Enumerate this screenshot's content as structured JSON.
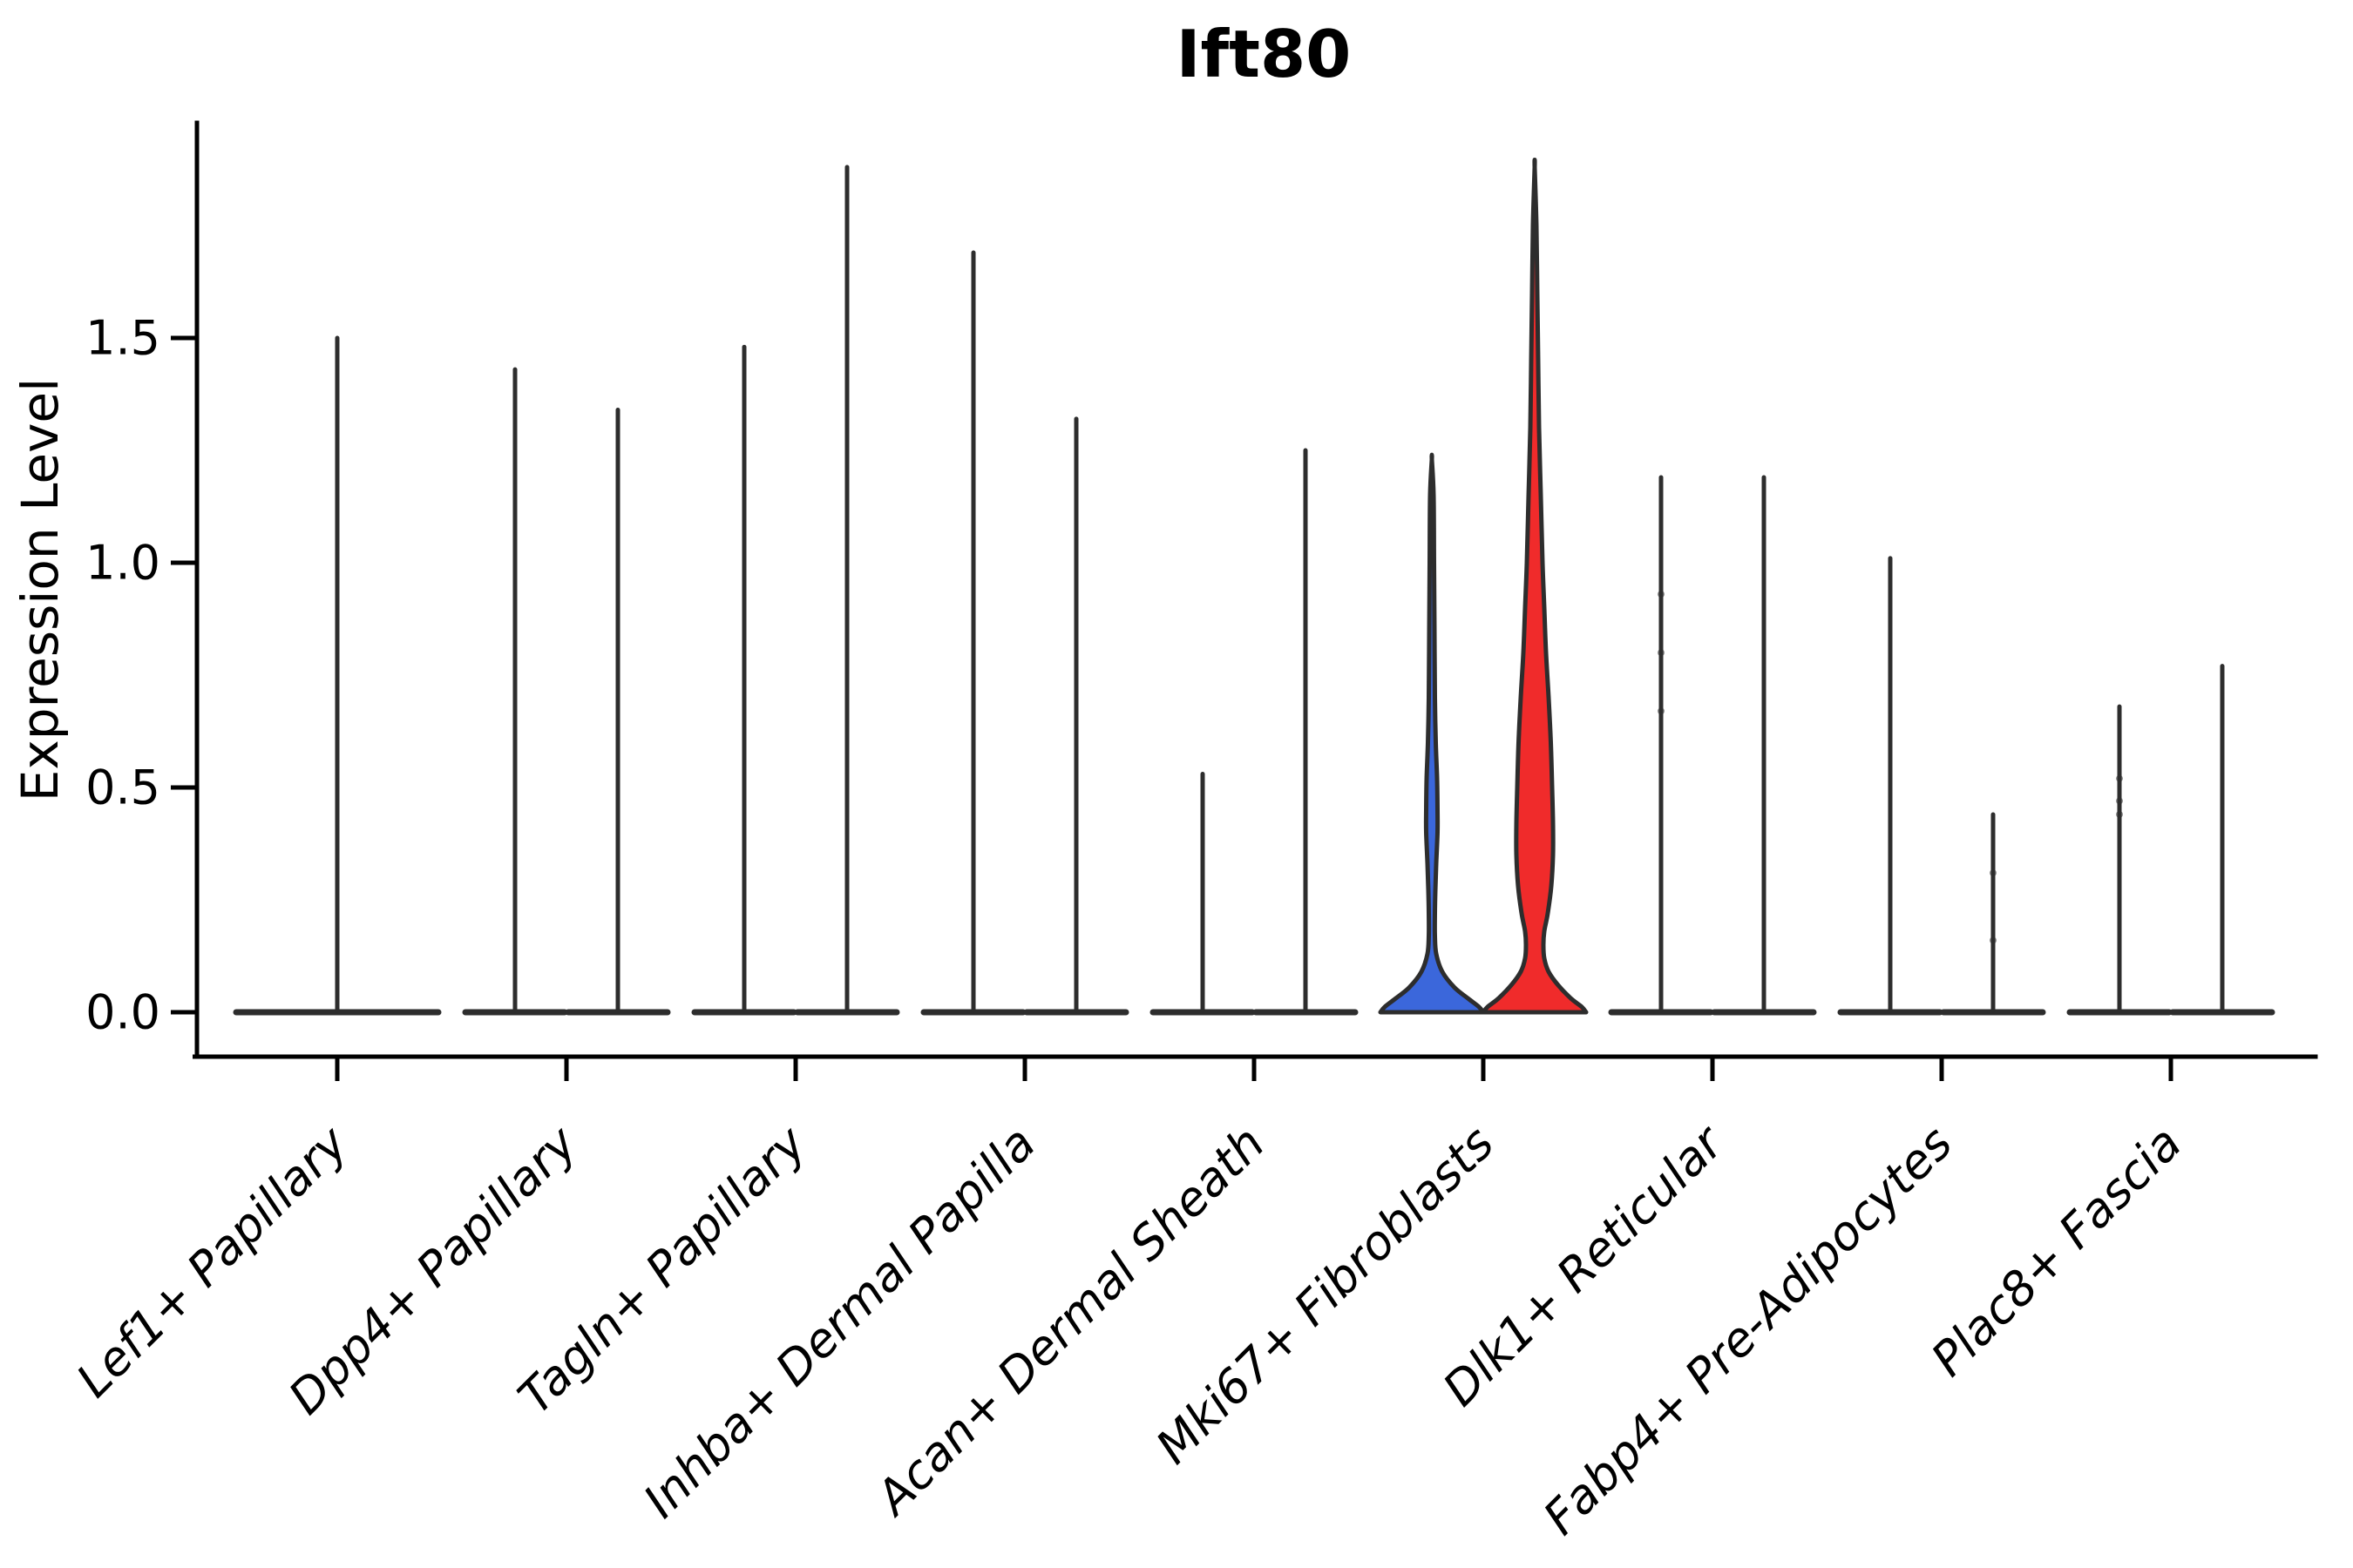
{
  "title": "Ift80",
  "y_axis": {
    "label": "Expression Level",
    "tick_labels": [
      "0.0",
      "0.5",
      "1.0",
      "1.5"
    ]
  },
  "colors": {
    "group_blue": "#3B67DB",
    "group_red": "#F02B2B",
    "outline": "#2D2D2D",
    "axis": "#000000",
    "background": "#FFFFFF"
  },
  "chart_data": {
    "type": "violin",
    "title": "Ift80",
    "xlabel": "",
    "ylabel": "Expression Level",
    "ylim": [
      -0.1,
      1.98
    ],
    "ytick_values": [
      0.0,
      0.5,
      1.0,
      1.5
    ],
    "ytick_labels": [
      "0.0",
      "0.5",
      "1.0",
      "1.5"
    ],
    "grid": false,
    "legend": "none",
    "categories": [
      "Lef1+ Papillary",
      "Dpp4+ Papillary",
      "Tagln+ Papillary",
      "Inhba+ Dermal Papilla",
      "Acan+ Dermal Sheath",
      "Mki67+ Fibroblasts",
      "Dlk1+ Reticular",
      "Fabp4+ Pre-Adipocytes",
      "Plac8+ Fascia"
    ],
    "violins": [
      {
        "category": 0,
        "position": "center",
        "span": "full",
        "style": "spike",
        "max": 1.5
      },
      {
        "category": 1,
        "position": "left",
        "style": "spike",
        "max": 1.43
      },
      {
        "category": 1,
        "position": "right",
        "style": "spike",
        "max": 1.34
      },
      {
        "category": 2,
        "position": "left",
        "style": "spike",
        "max": 1.48
      },
      {
        "category": 2,
        "position": "right",
        "style": "spike",
        "max": 1.88
      },
      {
        "category": 3,
        "position": "left",
        "style": "spike",
        "max": 1.69
      },
      {
        "category": 3,
        "position": "right",
        "style": "spike",
        "max": 1.32
      },
      {
        "category": 4,
        "position": "left",
        "style": "spike",
        "max": 0.53
      },
      {
        "category": 4,
        "position": "right",
        "style": "spike",
        "max": 1.25
      },
      {
        "category": 5,
        "position": "left",
        "style": "violin",
        "fill": "#3B67DB",
        "max": 1.23,
        "profile": [
          [
            1.23,
            0
          ],
          [
            1.15,
            2
          ],
          [
            1.0,
            2.5
          ],
          [
            0.85,
            3
          ],
          [
            0.7,
            3.5
          ],
          [
            0.6,
            4.5
          ],
          [
            0.52,
            6
          ],
          [
            0.45,
            6.5
          ],
          [
            0.4,
            6.5
          ],
          [
            0.33,
            5
          ],
          [
            0.27,
            4
          ],
          [
            0.22,
            3.5
          ],
          [
            0.17,
            3.5
          ],
          [
            0.13,
            5
          ],
          [
            0.09,
            12
          ],
          [
            0.055,
            26
          ],
          [
            0.03,
            42
          ],
          [
            0.012,
            54
          ],
          [
            0,
            59
          ]
        ]
      },
      {
        "category": 5,
        "position": "right",
        "style": "violin",
        "fill": "#F02B2B",
        "max": 1.88,
        "profile": [
          [
            1.88,
            0
          ],
          [
            1.75,
            2
          ],
          [
            1.6,
            3
          ],
          [
            1.45,
            4
          ],
          [
            1.3,
            5
          ],
          [
            1.15,
            7
          ],
          [
            1.0,
            9
          ],
          [
            0.9,
            11
          ],
          [
            0.8,
            13
          ],
          [
            0.7,
            16
          ],
          [
            0.6,
            18.5
          ],
          [
            0.5,
            20
          ],
          [
            0.42,
            21
          ],
          [
            0.35,
            21
          ],
          [
            0.28,
            19
          ],
          [
            0.22,
            15
          ],
          [
            0.18,
            11
          ],
          [
            0.15,
            10
          ],
          [
            0.12,
            11
          ],
          [
            0.09,
            16
          ],
          [
            0.06,
            27
          ],
          [
            0.03,
            42
          ],
          [
            0.012,
            54
          ],
          [
            0,
            59
          ]
        ]
      },
      {
        "category": 6,
        "position": "left",
        "style": "spike",
        "max": 1.19,
        "dots": [
          0.67,
          0.8,
          0.93
        ]
      },
      {
        "category": 6,
        "position": "right",
        "style": "spike",
        "max": 1.19
      },
      {
        "category": 7,
        "position": "left",
        "style": "spike",
        "max": 1.01
      },
      {
        "category": 7,
        "position": "right",
        "style": "spike",
        "max": 0.44,
        "dots": [
          0.16,
          0.31
        ]
      },
      {
        "category": 8,
        "position": "left",
        "style": "spike",
        "max": 0.68,
        "dots": [
          0.44,
          0.47,
          0.52
        ]
      },
      {
        "category": 8,
        "position": "right",
        "style": "spike",
        "max": 0.77
      }
    ]
  }
}
